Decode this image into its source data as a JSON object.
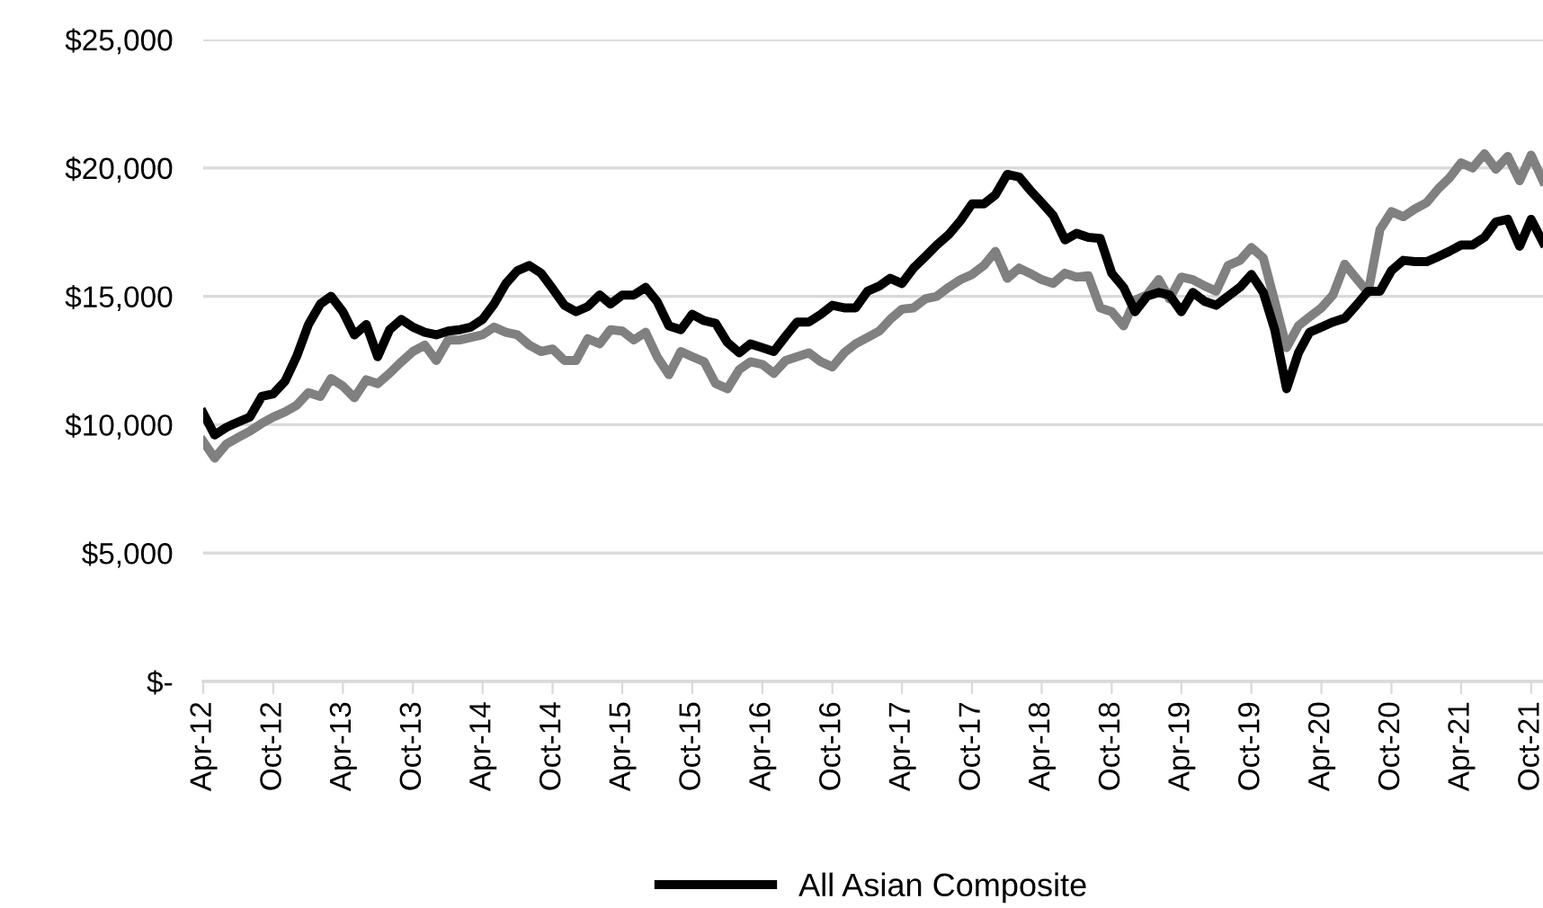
{
  "chart_data": {
    "type": "line",
    "x": [
      "2012-04",
      "2012-05",
      "2012-06",
      "2012-07",
      "2012-08",
      "2012-09",
      "2012-10",
      "2012-11",
      "2012-12",
      "2013-01",
      "2013-02",
      "2013-03",
      "2013-04",
      "2013-05",
      "2013-06",
      "2013-07",
      "2013-08",
      "2013-09",
      "2013-10",
      "2013-11",
      "2013-12",
      "2014-01",
      "2014-02",
      "2014-03",
      "2014-04",
      "2014-05",
      "2014-06",
      "2014-07",
      "2014-08",
      "2014-09",
      "2014-10",
      "2014-11",
      "2014-12",
      "2015-01",
      "2015-02",
      "2015-03",
      "2015-04",
      "2015-05",
      "2015-06",
      "2015-07",
      "2015-08",
      "2015-09",
      "2015-10",
      "2015-11",
      "2015-12",
      "2016-01",
      "2016-02",
      "2016-03",
      "2016-04",
      "2016-05",
      "2016-06",
      "2016-07",
      "2016-08",
      "2016-09",
      "2016-10",
      "2016-11",
      "2016-12",
      "2017-01",
      "2017-02",
      "2017-03",
      "2017-04",
      "2017-05",
      "2017-06",
      "2017-07",
      "2017-08",
      "2017-09",
      "2017-10",
      "2017-11",
      "2017-12",
      "2018-01",
      "2018-02",
      "2018-03",
      "2018-04",
      "2018-05",
      "2018-06",
      "2018-07",
      "2018-08",
      "2018-09",
      "2018-10",
      "2018-11",
      "2018-12",
      "2019-01",
      "2019-02",
      "2019-03",
      "2019-04",
      "2019-05",
      "2019-06",
      "2019-07",
      "2019-08",
      "2019-09",
      "2019-10",
      "2019-11",
      "2019-12",
      "2020-01",
      "2020-02",
      "2020-03",
      "2020-04",
      "2020-05",
      "2020-06",
      "2020-07",
      "2020-08",
      "2020-09",
      "2020-10",
      "2020-11",
      "2020-12",
      "2021-01",
      "2021-02",
      "2021-03",
      "2021-04",
      "2021-05",
      "2021-06",
      "2021-07",
      "2021-08",
      "2021-09",
      "2021-10",
      "2021-11"
    ],
    "series": [
      {
        "name": "All Asian Composite",
        "color": "#000000",
        "values": [
          10450,
          9600,
          9900,
          10100,
          10300,
          11100,
          11200,
          11700,
          12650,
          13900,
          14700,
          15000,
          14400,
          13500,
          13900,
          12650,
          13700,
          14100,
          13800,
          13600,
          13500,
          13650,
          13700,
          13800,
          14100,
          14700,
          15500,
          16000,
          16200,
          15900,
          15300,
          14650,
          14400,
          14600,
          15050,
          14700,
          15050,
          15050,
          15350,
          14800,
          13850,
          13700,
          14300,
          14050,
          13950,
          13200,
          12800,
          13150,
          13000,
          12850,
          13450,
          14000,
          14000,
          14300,
          14650,
          14550,
          14550,
          15200,
          15400,
          15700,
          15500,
          16100,
          16550,
          17000,
          17400,
          17950,
          18600,
          18600,
          18950,
          19750,
          19650,
          19150,
          18650,
          18150,
          17200,
          17450,
          17300,
          17250,
          15900,
          15350,
          14400,
          15000,
          15150,
          15050,
          14400,
          15150,
          14800,
          14650,
          15000,
          15350,
          15850,
          15150,
          13700,
          11400,
          12800,
          13600,
          13800,
          14000,
          14150,
          14650,
          15200,
          15200,
          16000,
          16400,
          16350,
          16350,
          16550,
          16750,
          17000,
          17000,
          17300,
          17900,
          18000,
          16950,
          18000,
          17100
        ]
      },
      {
        "color": "#808080",
        "values": [
          9350,
          8700,
          9250,
          9500,
          9750,
          10050,
          10300,
          10500,
          10750,
          11250,
          11100,
          11800,
          11500,
          11050,
          11750,
          11600,
          12000,
          12450,
          12850,
          13100,
          12500,
          13300,
          13300,
          13400,
          13500,
          13800,
          13600,
          13500,
          13100,
          12850,
          12950,
          12500,
          12500,
          13350,
          13150,
          13700,
          13650,
          13300,
          13600,
          12650,
          11950,
          12850,
          12650,
          12450,
          11600,
          11400,
          12150,
          12450,
          12350,
          12000,
          12500,
          12650,
          12800,
          12450,
          12250,
          12800,
          13150,
          13400,
          13650,
          14100,
          14500,
          14550,
          14900,
          15000,
          15350,
          15650,
          15850,
          16200,
          16750,
          15700,
          16100,
          15900,
          15650,
          15500,
          15900,
          15750,
          15800,
          14550,
          14400,
          13850,
          14850,
          15050,
          15650,
          14900,
          15750,
          15650,
          15400,
          15200,
          16200,
          16400,
          16900,
          16500,
          14800,
          13000,
          13850,
          14200,
          14550,
          15050,
          16250,
          15700,
          15150,
          17600,
          18300,
          18100,
          18400,
          18650,
          19200,
          19600,
          20200,
          20000,
          20550,
          19950,
          20450,
          19500,
          20500,
          19500
        ]
      }
    ],
    "xlim": [
      "2012-04",
      "2021-11"
    ],
    "xticks": [
      {
        "value": "2012-04",
        "label": "Apr-12"
      },
      {
        "value": "2012-10",
        "label": "Oct-12"
      },
      {
        "value": "2013-04",
        "label": "Apr-13"
      },
      {
        "value": "2013-10",
        "label": "Oct-13"
      },
      {
        "value": "2014-04",
        "label": "Apr-14"
      },
      {
        "value": "2014-10",
        "label": "Oct-14"
      },
      {
        "value": "2015-04",
        "label": "Apr-15"
      },
      {
        "value": "2015-10",
        "label": "Oct-15"
      },
      {
        "value": "2016-04",
        "label": "Apr-16"
      },
      {
        "value": "2016-10",
        "label": "Oct-16"
      },
      {
        "value": "2017-04",
        "label": "Apr-17"
      },
      {
        "value": "2017-10",
        "label": "Oct-17"
      },
      {
        "value": "2018-04",
        "label": "Apr-18"
      },
      {
        "value": "2018-10",
        "label": "Oct-18"
      },
      {
        "value": "2019-04",
        "label": "Apr-19"
      },
      {
        "value": "2019-10",
        "label": "Oct-19"
      },
      {
        "value": "2020-04",
        "label": "Apr-20"
      },
      {
        "value": "2020-10",
        "label": "Oct-20"
      },
      {
        "value": "2021-04",
        "label": "Apr-21"
      },
      {
        "value": "2021-10",
        "label": "Oct-21"
      }
    ],
    "ylim": [
      0,
      25000
    ],
    "yticks": [
      {
        "value": 0,
        "label": "$-"
      },
      {
        "value": 5000,
        "label": "$5,000"
      },
      {
        "value": 10000,
        "label": "$10,000"
      },
      {
        "value": 15000,
        "label": "$15,000"
      },
      {
        "value": 20000,
        "label": "$20,000"
      },
      {
        "value": 25000,
        "label": "$25,000"
      }
    ],
    "grid": "y",
    "legend": "bottom",
    "line_style": "solid",
    "marker": "none"
  }
}
